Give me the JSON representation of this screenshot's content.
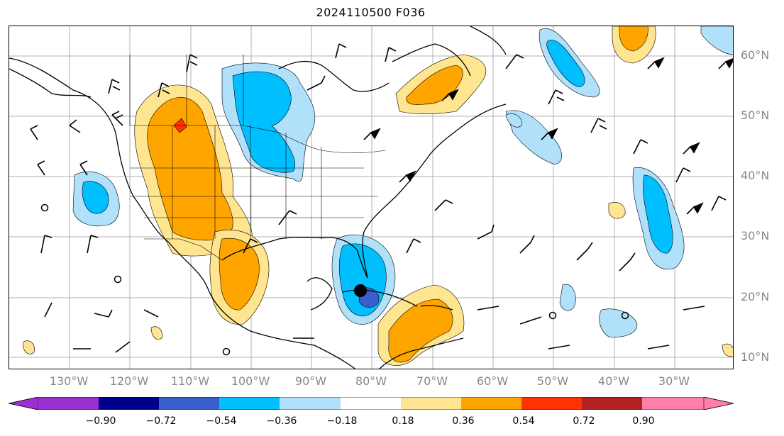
{
  "title": "2024110500 F036",
  "lat_labels": [
    "60°N",
    "50°N",
    "40°N",
    "30°N",
    "20°N",
    "10°N"
  ],
  "lon_labels": [
    "130°W",
    "120°W",
    "110°W",
    "100°W",
    "90°W",
    "80°W",
    "70°W",
    "60°W",
    "50°W",
    "40°W",
    "30°W"
  ],
  "colorbar": {
    "ticks": [
      "−0.90",
      "−0.72",
      "−0.54",
      "−0.36",
      "−0.18",
      "0.18",
      "0.36",
      "0.54",
      "0.72",
      "0.90"
    ],
    "colors": [
      "#9b30d0",
      "#00008b",
      "#3a5fcd",
      "#00bfff",
      "#b0e0fa",
      "#ffffff",
      "#ffe58f",
      "#ffa500",
      "#ff3300",
      "#b22222",
      "#ff7fa8"
    ]
  },
  "legend_colors": {
    "neg_strong": "#00bfff",
    "neg_weak": "#b0e0fa",
    "pos_weak": "#ffe58f",
    "pos_strong": "#ffa500"
  }
}
